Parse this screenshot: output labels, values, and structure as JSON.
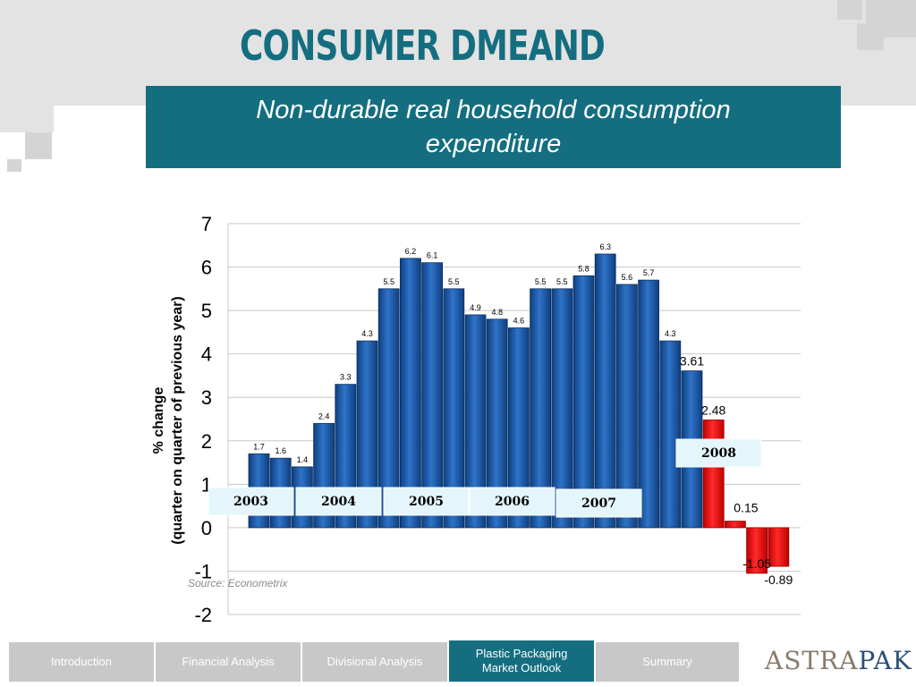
{
  "header": {
    "title": "CONSUMER DMEAND",
    "subtitle_line1": "Non-durable real household consumption",
    "subtitle_line2": "expenditure"
  },
  "chart_data": {
    "type": "bar",
    "ylabel_line1": "% change",
    "ylabel_line2": "(quarter on quarter of previous year)",
    "ylim": [
      -2,
      7
    ],
    "yticks": [
      "7",
      "6",
      "5",
      "4",
      "3",
      "2",
      "1",
      "0",
      "-1",
      "-2"
    ],
    "grid": true,
    "values": [
      1.7,
      1.6,
      1.4,
      2.4,
      3.3,
      4.3,
      5.5,
      6.2,
      6.1,
      5.5,
      4.9,
      4.8,
      4.6,
      5.5,
      5.5,
      5.8,
      6.3,
      5.6,
      5.7,
      4.3,
      3.61,
      2.48,
      0.15,
      -1.05,
      -0.89
    ],
    "labels": [
      "1.7",
      "1.6",
      "1.4",
      "2.4",
      "3.3",
      "4.3",
      "5.5",
      "6.2",
      "6.1",
      "5.5",
      "4.9",
      "4.8",
      "4.6",
      "5.5",
      "5.5",
      "5.8",
      "6.3",
      "5.6",
      "5.7",
      "4.3",
      "3.61",
      "2.48",
      "0.15",
      "-1.05",
      "-0.89"
    ],
    "highlight_from_index": 21,
    "colors": {
      "bar": "#1a5aa8",
      "highlight": "#e81010"
    },
    "year_labels": [
      "2003",
      "2004",
      "2005",
      "2006",
      "2007",
      "2008"
    ]
  },
  "source": "Source: Econometrix",
  "nav": {
    "items": [
      "Introduction",
      "Financial Analysis",
      "Divisional Analysis",
      "Plastic Packaging\nMarket Outlook",
      "Summary"
    ],
    "active_index": 3
  },
  "logo": {
    "part1": "ASTRA",
    "part2": "PAK"
  }
}
